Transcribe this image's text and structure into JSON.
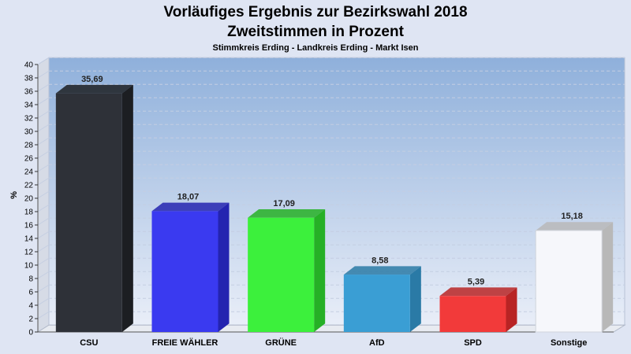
{
  "chart_data": {
    "type": "bar",
    "title": "Vorläufiges Ergebnis zur Bezirkswahl 2018",
    "title2": "Zweitstimmen in Prozent",
    "subtitle": "Stimmkreis Erding - Landkreis Erding - Markt Isen",
    "ylabel": "%",
    "xlabel": "",
    "ylim": [
      0,
      40
    ],
    "ytick_step": 2,
    "grid": true,
    "categories": [
      "CSU",
      "FREIE WÄHLER",
      "GRÜNE",
      "AfD",
      "SPD",
      "Sonstige"
    ],
    "values": [
      35.69,
      18.07,
      17.09,
      8.58,
      5.39,
      15.18
    ],
    "value_labels": [
      "35,69",
      "18,07",
      "17,09",
      "8,58",
      "5,39",
      "15,18"
    ],
    "colors": [
      "#2e3138",
      "#3a3af0",
      "#3cf03c",
      "#3a9ed4",
      "#f23a3a",
      "#f6f7fb"
    ],
    "colors_dark": [
      "#1c1e22",
      "#2424b0",
      "#26b026",
      "#2a7aa6",
      "#b82424",
      "#b8b8b8"
    ]
  }
}
